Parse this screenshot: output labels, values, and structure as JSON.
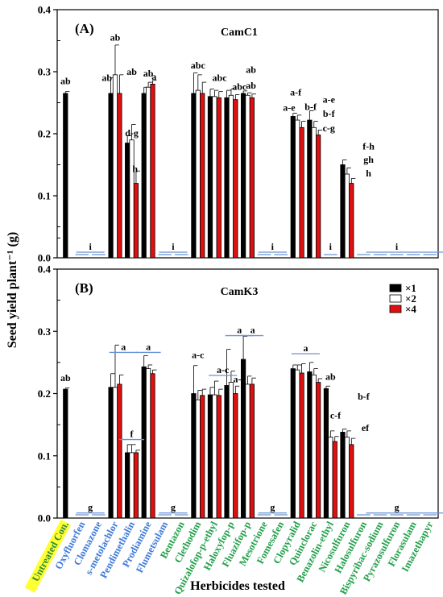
{
  "chart_data": {
    "type": "bar",
    "xlabel": "Herbicides tested",
    "ylabel": "Seed yield plant⁻¹ (g)",
    "ylim": [
      0,
      0.4
    ],
    "yticks": [
      "0.0",
      "0.1",
      "0.2",
      "0.3",
      "0.4"
    ],
    "legend": {
      "placement": "right",
      "entries": [
        {
          "label": "×1",
          "color": "#000000"
        },
        {
          "label": "×2",
          "color": "#ffffff"
        },
        {
          "label": "×4",
          "color": "#e01010"
        }
      ]
    },
    "categories": [
      {
        "label": "Untreated Con.",
        "color": "#2e8b3a",
        "highlight": "#ffff33"
      },
      {
        "label": "Oxyfluorfen",
        "color": "#3f7ad8"
      },
      {
        "label": "Clomazone",
        "color": "#3f7ad8"
      },
      {
        "label": "s-metolachlor",
        "color": "#3f7ad8"
      },
      {
        "label": "Pendimethalin",
        "color": "#3f7ad8"
      },
      {
        "label": "Prodiamine",
        "color": "#3f7ad8"
      },
      {
        "label": "Flumetsulam",
        "color": "#3f7ad8"
      },
      {
        "label": "Bentazon",
        "color": "#22a04a"
      },
      {
        "label": "Clethodim",
        "color": "#22a04a"
      },
      {
        "label": "Quizalofop-p-ethyl",
        "color": "#22a04a"
      },
      {
        "label": "Haloxyfop-p",
        "color": "#22a04a"
      },
      {
        "label": "Fluazifop-p",
        "color": "#22a04a"
      },
      {
        "label": "Mesotrione",
        "color": "#22a04a"
      },
      {
        "label": "Fomesafen",
        "color": "#22a04a"
      },
      {
        "label": "Clopyralid",
        "color": "#22a04a"
      },
      {
        "label": "Quinclorac",
        "color": "#22a04a"
      },
      {
        "label": "Benazolin-ethyl",
        "color": "#22a04a"
      },
      {
        "label": "Nicosulfuron",
        "color": "#22a04a"
      },
      {
        "label": "Halosulfuron",
        "color": "#22a04a"
      },
      {
        "label": "Bispyribac-sodium",
        "color": "#22a04a"
      },
      {
        "label": "Pyrazosulfuron",
        "color": "#22a04a"
      },
      {
        "label": "Florasulam",
        "color": "#22a04a"
      },
      {
        "label": "Imazethapyr",
        "color": "#22a04a"
      }
    ],
    "panels": [
      {
        "label": "(A)",
        "title": "CamC1",
        "bars": [
          [
            0.265
          ],
          [
            0,
            0,
            0
          ],
          [
            0,
            0,
            0
          ],
          [
            0.265,
            0.295,
            0.265
          ],
          [
            0.185,
            0.19,
            0.12
          ],
          [
            0.265,
            0.275,
            0.28
          ],
          [
            0,
            0,
            0
          ],
          [
            0,
            0,
            0
          ],
          [
            0.265,
            0.27,
            0.265
          ],
          [
            0.26,
            0.26,
            0.258
          ],
          [
            0.258,
            0.262,
            0.255
          ],
          [
            0.265,
            0.262,
            0.258
          ],
          [
            0,
            0,
            0
          ],
          [
            0,
            0,
            0
          ],
          [
            0.228,
            0.222,
            0.21
          ],
          [
            0.222,
            0.21,
            0.198
          ],
          [
            0,
            0,
            0
          ],
          [
            0.15,
            0.135,
            0.12
          ],
          [
            0,
            0,
            0
          ],
          [
            0,
            0,
            0
          ],
          [
            0,
            0,
            0
          ],
          [
            0,
            0,
            0
          ],
          [
            0,
            0,
            0
          ]
        ],
        "errors": [
          [
            0.003
          ],
          [
            0,
            0,
            0
          ],
          [
            0,
            0,
            0
          ],
          [
            0.025,
            0.048,
            0.03
          ],
          [
            0.012,
            0.025,
            0.02
          ],
          [
            0.01,
            0.008,
            0.006
          ],
          [
            0,
            0,
            0
          ],
          [
            0,
            0,
            0
          ],
          [
            0.033,
            0.025,
            0.018
          ],
          [
            0.012,
            0.01,
            0.01
          ],
          [
            0.012,
            0.01,
            0.008
          ],
          [
            0.004,
            0.004,
            0.006
          ],
          [
            0,
            0,
            0
          ],
          [
            0,
            0,
            0
          ],
          [
            0.005,
            0.008,
            0.01
          ],
          [
            0.015,
            0.01,
            0.008
          ],
          [
            0,
            0,
            0
          ],
          [
            0.008,
            0.01,
            0.008
          ],
          [
            0,
            0,
            0
          ],
          [
            0,
            0,
            0
          ],
          [
            0,
            0,
            0
          ],
          [
            0,
            0,
            0
          ],
          [
            0,
            0,
            0
          ]
        ],
        "letters": [
          {
            "text": "ab",
            "cat": 0,
            "y": 0.28
          },
          {
            "text": "i",
            "cat": 1.5,
            "y": 0.013,
            "span": [
              1,
              2
            ]
          },
          {
            "text": "ab",
            "cat": 3,
            "y": 0.35
          },
          {
            "text": "ab",
            "cat": 2.5,
            "y": 0.285
          },
          {
            "text": "ab",
            "cat": 4,
            "y": 0.295
          },
          {
            "text": "d-g",
            "cat": 4,
            "y": 0.196
          },
          {
            "text": "h",
            "cat": 4.2,
            "y": 0.138
          },
          {
            "text": "ab",
            "cat": 5,
            "y": 0.292
          },
          {
            "text": "a",
            "cat": 5.35,
            "y": 0.287
          },
          {
            "text": "i",
            "cat": 6.5,
            "y": 0.013,
            "span": [
              6,
              7
            ]
          },
          {
            "text": "abc",
            "cat": 8,
            "y": 0.305
          },
          {
            "text": "abc",
            "cat": 9.3,
            "y": 0.285
          },
          {
            "text": "abc",
            "cat": 10.5,
            "y": 0.271
          },
          {
            "text": "ab",
            "cat": 11.2,
            "y": 0.298
          },
          {
            "text": "ab",
            "cat": 11.2,
            "y": 0.273
          },
          {
            "text": "i",
            "cat": 12.5,
            "y": 0.013,
            "span": [
              12,
              13
            ]
          },
          {
            "text": "a-e",
            "cat": 13.5,
            "y": 0.237
          },
          {
            "text": "a-f",
            "cat": 13.9,
            "y": 0.262
          },
          {
            "text": "b-f",
            "cat": 14.8,
            "y": 0.238
          },
          {
            "text": "a-e",
            "cat": 15.9,
            "y": 0.25
          },
          {
            "text": "b-f",
            "cat": 15.9,
            "y": 0.227
          },
          {
            "text": "c-g",
            "cat": 15.9,
            "y": 0.204
          },
          {
            "text": "i",
            "cat": 16,
            "y": 0.013
          },
          {
            "text": "f-h",
            "cat": 18.3,
            "y": 0.175
          },
          {
            "text": "gh",
            "cat": 18.3,
            "y": 0.153
          },
          {
            "text": "h",
            "cat": 18.3,
            "y": 0.131
          },
          {
            "text": "i",
            "cat": 20,
            "y": 0.013,
            "span": [
              18.5,
              22.5
            ]
          }
        ]
      },
      {
        "label": "(B)",
        "title": "CamK3",
        "bars": [
          [
            0.207
          ],
          [
            0,
            0,
            0
          ],
          [
            0,
            0,
            0
          ],
          [
            0.21,
            0.21,
            0.215
          ],
          [
            0.105,
            0.105,
            0.105
          ],
          [
            0.243,
            0.24,
            0.232
          ],
          [
            0,
            0,
            0
          ],
          [
            0,
            0,
            0
          ],
          [
            0.2,
            0.19,
            0.197
          ],
          [
            0.198,
            0.198,
            0.197
          ],
          [
            0.213,
            0.218,
            0.2
          ],
          [
            0.255,
            0.215,
            0.215
          ],
          [
            0,
            0,
            0
          ],
          [
            0,
            0,
            0
          ],
          [
            0.24,
            0.238,
            0.233
          ],
          [
            0.235,
            0.23,
            0.218
          ],
          [
            0.208,
            0.13,
            0.123
          ],
          [
            0.138,
            0.13,
            0.118
          ],
          [
            0,
            0,
            0
          ],
          [
            0,
            0,
            0
          ],
          [
            0,
            0,
            0
          ],
          [
            0,
            0,
            0
          ],
          [
            0,
            0,
            0
          ]
        ],
        "errors": [
          [
            0.002
          ],
          [
            0,
            0,
            0
          ],
          [
            0,
            0,
            0
          ],
          [
            0.022,
            0.068,
            0.015
          ],
          [
            0.013,
            0.013,
            0.004
          ],
          [
            0.018,
            0.006,
            0.006
          ],
          [
            0,
            0,
            0
          ],
          [
            0,
            0,
            0
          ],
          [
            0.045,
            0.015,
            0.01
          ],
          [
            0.012,
            0.022,
            0.01
          ],
          [
            0.058,
            0.018,
            0.012
          ],
          [
            0.037,
            0.013,
            0.01
          ],
          [
            0,
            0,
            0
          ],
          [
            0,
            0,
            0
          ],
          [
            0.006,
            0.008,
            0.015
          ],
          [
            0.015,
            0.01,
            0.006
          ],
          [
            0.004,
            0.01,
            0.008
          ],
          [
            0.005,
            0.01,
            0.01
          ],
          [
            0,
            0,
            0
          ],
          [
            0,
            0,
            0
          ],
          [
            0,
            0,
            0
          ],
          [
            0,
            0,
            0
          ],
          [
            0,
            0,
            0
          ]
        ],
        "letters": [
          {
            "text": "ab",
            "cat": 0,
            "y": 0.22
          },
          {
            "text": "g",
            "cat": 1.5,
            "y": 0.012,
            "span": [
              1,
              2
            ]
          },
          {
            "text": "a",
            "cat": 3.5,
            "y": 0.27,
            "span": [
              3,
              4
            ]
          },
          {
            "text": "f",
            "cat": 4,
            "y": 0.13,
            "span": [
              3.6,
              4.4
            ]
          },
          {
            "text": "a",
            "cat": 5,
            "y": 0.27,
            "span": [
              4.6,
              5.4
            ]
          },
          {
            "text": "g",
            "cat": 6.5,
            "y": 0.012,
            "span": [
              6,
              7
            ]
          },
          {
            "text": "a-c",
            "cat": 8,
            "y": 0.257
          },
          {
            "text": "a-c",
            "cat": 9.5,
            "y": 0.233,
            "span": [
              9,
              10
            ]
          },
          {
            "text": "a-c",
            "cat": 10.5,
            "y": 0.218
          },
          {
            "text": "a",
            "cat": 10.5,
            "y": 0.297,
            "span": [
              10,
              11
            ]
          },
          {
            "text": "a",
            "cat": 11.3,
            "y": 0.297,
            "span": [
              11,
              11.6
            ]
          },
          {
            "text": "g",
            "cat": 12.5,
            "y": 0.012,
            "span": [
              12,
              13
            ]
          },
          {
            "text": "a",
            "cat": 14.5,
            "y": 0.268,
            "span": [
              14,
              15
            ]
          },
          {
            "text": "ab",
            "cat": 16,
            "y": 0.222
          },
          {
            "text": "c-f",
            "cat": 16.3,
            "y": 0.16
          },
          {
            "text": "b-f",
            "cat": 18,
            "y": 0.19
          },
          {
            "text": "ef",
            "cat": 18.1,
            "y": 0.14
          },
          {
            "text": "g",
            "cat": 20,
            "y": 0.012,
            "span": [
              18.5,
              22.5
            ]
          }
        ]
      }
    ]
  }
}
